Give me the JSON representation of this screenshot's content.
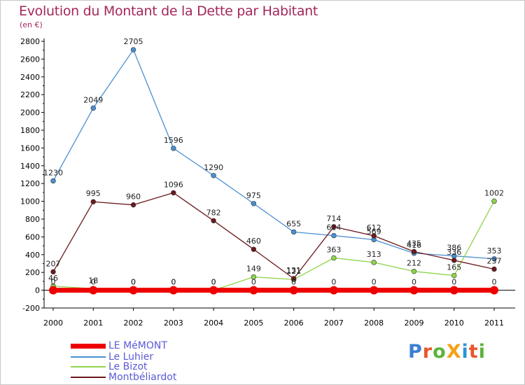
{
  "title": "Evolution du Montant de la Dette par Habitant",
  "unit": "(en €)",
  "logo": {
    "text": "ProXiti",
    "letters": [
      "P",
      "r",
      "o",
      "X",
      "i",
      "t",
      "i"
    ],
    "colors": [
      "#3a7fd5",
      "#e8562a",
      "#5ab33a",
      "#f2a21b",
      "#2b93d5",
      "#e8562a",
      "#5ab33a"
    ]
  },
  "chart_data": {
    "type": "line",
    "title": "Evolution du Montant de la Dette par Habitant",
    "ylabel": "(en €)",
    "xlabel": "",
    "x": [
      "2000",
      "2001",
      "2002",
      "2003",
      "2004",
      "2005",
      "2006",
      "2007",
      "2008",
      "2009",
      "2010",
      "2011"
    ],
    "ylim": [
      -200,
      2800
    ],
    "yticks": [
      -200,
      0,
      200,
      400,
      600,
      800,
      1000,
      1200,
      1400,
      1600,
      1800,
      2000,
      2200,
      2400,
      2600,
      2800
    ],
    "grid": false,
    "legend_position": "bottom-left",
    "series": [
      {
        "name": "LE MéMONT",
        "color": "#ee0000",
        "values": [
          0,
          0,
          0,
          0,
          0,
          0,
          0,
          0,
          0,
          0,
          0,
          0
        ],
        "labels": [
          "0",
          "0",
          "0",
          "0",
          "0",
          "0",
          "0",
          "0",
          "0",
          "0",
          "0",
          "0"
        ]
      },
      {
        "name": "Le Luhier",
        "color": "#4a8fd0",
        "values": [
          1230,
          2049,
          2705,
          1596,
          1290,
          975,
          655,
          614,
          569,
          416,
          386,
          353
        ],
        "labels": [
          "1230",
          "2049",
          "2705",
          "1596",
          "1290",
          "975",
          "655",
          "614",
          "569",
          "416",
          "386",
          "353"
        ]
      },
      {
        "name": "Le Bizot",
        "color": "#8fd44a",
        "values": [
          46,
          18,
          0,
          0,
          0,
          149,
          121,
          363,
          313,
          212,
          165,
          1002
        ],
        "labels": [
          "46",
          "18",
          "0",
          "0",
          "0",
          "149",
          "121",
          "363",
          "313",
          "212",
          "165",
          "1002"
        ]
      },
      {
        "name": "Montbéliardot",
        "color": "#6b1a1e",
        "values": [
          207,
          995,
          960,
          1096,
          782,
          460,
          131,
          714,
          612,
          435,
          336,
          237
        ],
        "labels": [
          "207",
          "995",
          "960",
          "1096",
          "782",
          "460",
          "131",
          "714",
          "612",
          "435",
          "336",
          "237"
        ]
      }
    ]
  }
}
